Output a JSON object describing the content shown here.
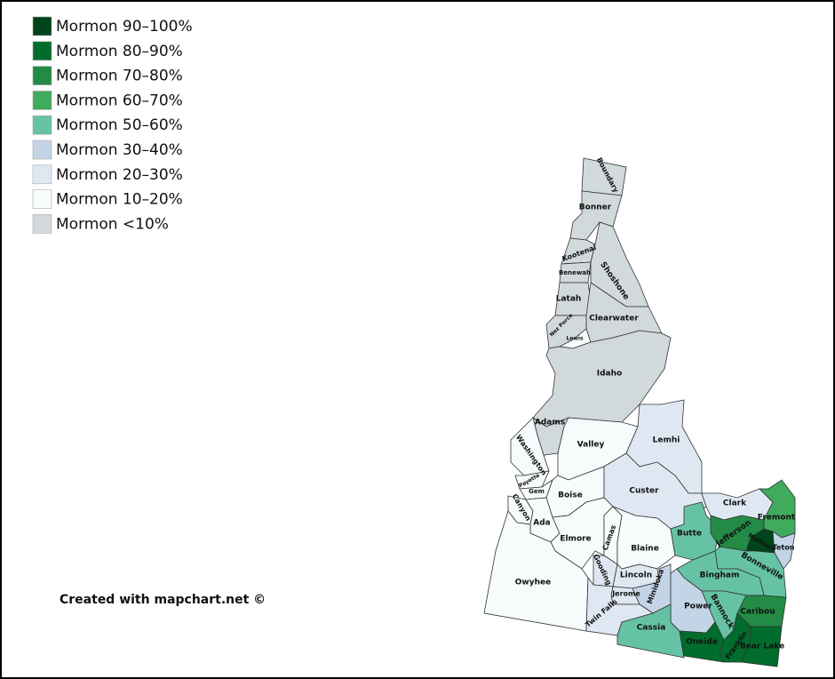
{
  "legend": [
    {
      "label": "Mormon 90–100%",
      "color": "#00441b"
    },
    {
      "label": "Mormon 80–90%",
      "color": "#006d2c"
    },
    {
      "label": "Mormon 70–80%",
      "color": "#238b45"
    },
    {
      "label": "Mormon 60–70%",
      "color": "#41ab5d"
    },
    {
      "label": "Mormon 50–60%",
      "color": "#66c2a4"
    },
    {
      "label": "Mormon 30–40%",
      "color": "#c3d4e6"
    },
    {
      "label": "Mormon 20–30%",
      "color": "#dfe8f2"
    },
    {
      "label": "Mormon 10–20%",
      "color": "#f6fbfc"
    },
    {
      "label": "Mormon <10%",
      "color": "#d2d9dc"
    }
  ],
  "counties": [
    {
      "name": "Boundary",
      "color": "#d2d9dc"
    },
    {
      "name": "Bonner",
      "color": "#d2d9dc"
    },
    {
      "name": "Kootenai",
      "color": "#d2d9dc"
    },
    {
      "name": "Benewah",
      "color": "#d2d9dc"
    },
    {
      "name": "Shoshone",
      "color": "#d2d9dc"
    },
    {
      "name": "Latah",
      "color": "#d2d9dc"
    },
    {
      "name": "Clearwater",
      "color": "#d2d9dc"
    },
    {
      "name": "Nez Perce",
      "color": "#d2d9dc"
    },
    {
      "name": "Lewis",
      "color": "#f6fbfc"
    },
    {
      "name": "Idaho",
      "color": "#d2d9dc"
    },
    {
      "name": "Adams",
      "color": "#d2d9dc"
    },
    {
      "name": "Washington",
      "color": "#f6fbfc"
    },
    {
      "name": "Valley",
      "color": "#f6fbfc"
    },
    {
      "name": "Lemhi",
      "color": "#dfe8f2"
    },
    {
      "name": "Payette",
      "color": "#f6fbfc"
    },
    {
      "name": "Gem",
      "color": "#f6fbfc"
    },
    {
      "name": "Canyon",
      "color": "#f6fbfc"
    },
    {
      "name": "Boise",
      "color": "#f6fbfc"
    },
    {
      "name": "Custer",
      "color": "#dfe8f2"
    },
    {
      "name": "Ada",
      "color": "#f6fbfc"
    },
    {
      "name": "Elmore",
      "color": "#f6fbfc"
    },
    {
      "name": "Owyhee",
      "color": "#f6fbfc"
    },
    {
      "name": "Camas",
      "color": "#f6fbfc"
    },
    {
      "name": "Blaine",
      "color": "#f6fbfc"
    },
    {
      "name": "Gooding",
      "color": "#dfe8f2"
    },
    {
      "name": "Lincoln",
      "color": "#dfe8f2"
    },
    {
      "name": "Jerome",
      "color": "#dfe8f2"
    },
    {
      "name": "Minidoka",
      "color": "#c3d4e6"
    },
    {
      "name": "Twin Falls",
      "color": "#dfe8f2"
    },
    {
      "name": "Butte",
      "color": "#66c2a4"
    },
    {
      "name": "Clark",
      "color": "#dfe8f2"
    },
    {
      "name": "Fremont",
      "color": "#41ab5d"
    },
    {
      "name": "Jefferson",
      "color": "#238b45"
    },
    {
      "name": "Madison",
      "color": "#00441b"
    },
    {
      "name": "Teton",
      "color": "#c3d4e6"
    },
    {
      "name": "Bonneville",
      "color": "#66c2a4"
    },
    {
      "name": "Bingham",
      "color": "#66c2a4"
    },
    {
      "name": "Power",
      "color": "#c3d4e6"
    },
    {
      "name": "Bannock",
      "color": "#66c2a4"
    },
    {
      "name": "Caribou",
      "color": "#238b45"
    },
    {
      "name": "Cassia",
      "color": "#66c2a4"
    },
    {
      "name": "Oneida",
      "color": "#006d2c"
    },
    {
      "name": "Franklin",
      "color": "#006d2c"
    },
    {
      "name": "Bear Lake",
      "color": "#006d2c"
    }
  ],
  "credit": "Created with mapchart.net ©"
}
